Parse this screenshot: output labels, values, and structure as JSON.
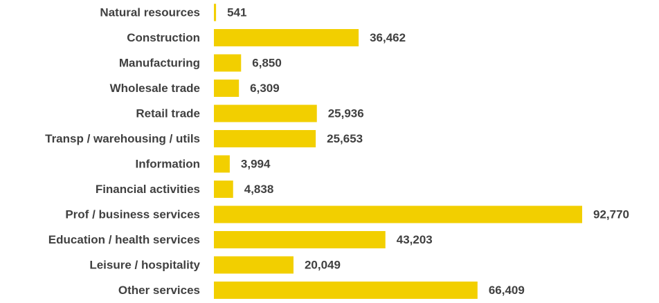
{
  "chart_data": {
    "type": "bar",
    "orientation": "horizontal",
    "categories": [
      "Natural resources",
      "Construction",
      "Manufacturing",
      "Wholesale trade",
      "Retail trade",
      "Transp / warehousing / utils",
      "Information",
      "Financial activities",
      "Prof / business services",
      "Education / health services",
      "Leisure / hospitality",
      "Other services"
    ],
    "values": [
      541,
      36462,
      6850,
      6309,
      25936,
      25653,
      3994,
      4838,
      92770,
      43203,
      20049,
      66409
    ],
    "data_labels": [
      "541",
      "36,462",
      "6,850",
      "6,309",
      "25,936",
      "25,653",
      "3,994",
      "4,838",
      "92,770",
      "43,203",
      "20,049",
      "66,409"
    ],
    "title": "",
    "xlabel": "",
    "ylabel": "",
    "xlim": [
      0,
      92770
    ],
    "grid": false,
    "legend": "none",
    "bar_color": "#F2CF00",
    "label_color": "#404040"
  }
}
